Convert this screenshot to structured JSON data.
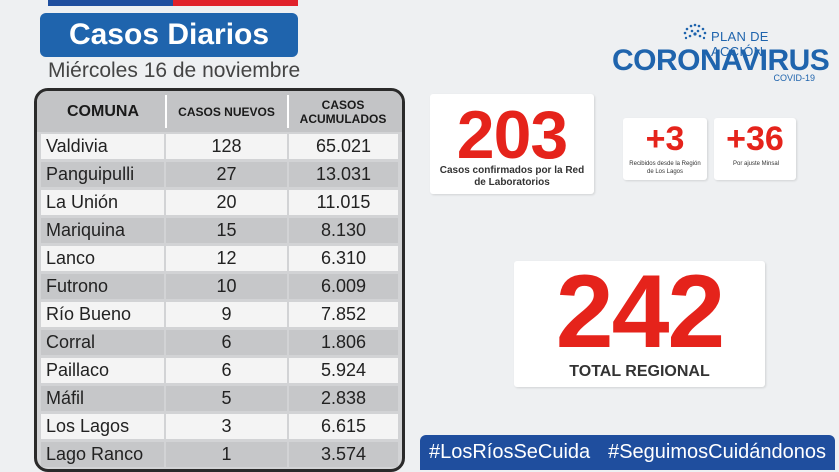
{
  "header": {
    "title": "Casos Diarios",
    "date": "Miércoles 16 de noviembre"
  },
  "logo": {
    "plan": "PLAN DE ACCIÓN",
    "name": "CORONAVIRUS",
    "sub": "COVID-19"
  },
  "table": {
    "headers": [
      "COMUNA",
      "CASOS NUEVOS",
      "CASOS ACUMULADOS"
    ],
    "rows": [
      {
        "comuna": "Valdivia",
        "nuevos": "128",
        "acumulados": "65.021"
      },
      {
        "comuna": "Panguipulli",
        "nuevos": "27",
        "acumulados": "13.031"
      },
      {
        "comuna": "La Unión",
        "nuevos": "20",
        "acumulados": "11.015"
      },
      {
        "comuna": "Mariquina",
        "nuevos": "15",
        "acumulados": "8.130"
      },
      {
        "comuna": "Lanco",
        "nuevos": "12",
        "acumulados": "6.310"
      },
      {
        "comuna": "Futrono",
        "nuevos": "10",
        "acumulados": "6.009"
      },
      {
        "comuna": "Río Bueno",
        "nuevos": "9",
        "acumulados": "7.852"
      },
      {
        "comuna": "Corral",
        "nuevos": "6",
        "acumulados": "1.806"
      },
      {
        "comuna": "Paillaco",
        "nuevos": "6",
        "acumulados": "5.924"
      },
      {
        "comuna": "Máfil",
        "nuevos": "5",
        "acumulados": "2.838"
      },
      {
        "comuna": "Los Lagos",
        "nuevos": "3",
        "acumulados": "6.615"
      },
      {
        "comuna": "Lago Ranco",
        "nuevos": "1",
        "acumulados": "3.574"
      }
    ]
  },
  "stats": {
    "lab": {
      "value": "203",
      "label": "Casos confirmados por la Red de Laboratorios"
    },
    "region": {
      "value": "+3",
      "label": "Recibidos desde la Región de Los Lagos"
    },
    "minsal": {
      "value": "+36",
      "label": "Por ajuste Minsal"
    },
    "total": {
      "value": "242",
      "label": "TOTAL REGIONAL"
    }
  },
  "hashtags": [
    "#LosRíosSeCuida",
    "#SeguimosCuidándonos"
  ],
  "colors": {
    "brand_blue": "#1f64ad",
    "dark_blue": "#1f4e9e",
    "accent_red": "#e5231b"
  }
}
